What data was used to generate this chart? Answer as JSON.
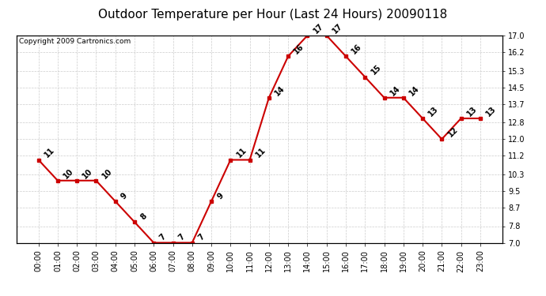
{
  "title": "Outdoor Temperature per Hour (Last 24 Hours) 20090118",
  "copyright": "Copyright 2009 Cartronics.com",
  "hours": [
    "00:00",
    "01:00",
    "02:00",
    "03:00",
    "04:00",
    "05:00",
    "06:00",
    "07:00",
    "08:00",
    "09:00",
    "10:00",
    "11:00",
    "12:00",
    "13:00",
    "14:00",
    "15:00",
    "16:00",
    "17:00",
    "18:00",
    "19:00",
    "20:00",
    "21:00",
    "22:00",
    "23:00"
  ],
  "temps": [
    11,
    10,
    10,
    10,
    9,
    8,
    7,
    7,
    7,
    9,
    11,
    11,
    14,
    16,
    17,
    17,
    16,
    15,
    14,
    14,
    13,
    12,
    13,
    13
  ],
  "ylim_min": 7.0,
  "ylim_max": 17.0,
  "yticks": [
    7.0,
    7.8,
    8.7,
    9.5,
    10.3,
    11.2,
    12.0,
    12.8,
    13.7,
    14.5,
    15.3,
    16.2,
    17.0
  ],
  "line_color": "#cc0000",
  "marker_color": "#cc0000",
  "bg_color": "#ffffff",
  "grid_color": "#cccccc",
  "title_fontsize": 11,
  "label_fontsize": 7,
  "annot_fontsize": 7,
  "copyright_fontsize": 6.5
}
